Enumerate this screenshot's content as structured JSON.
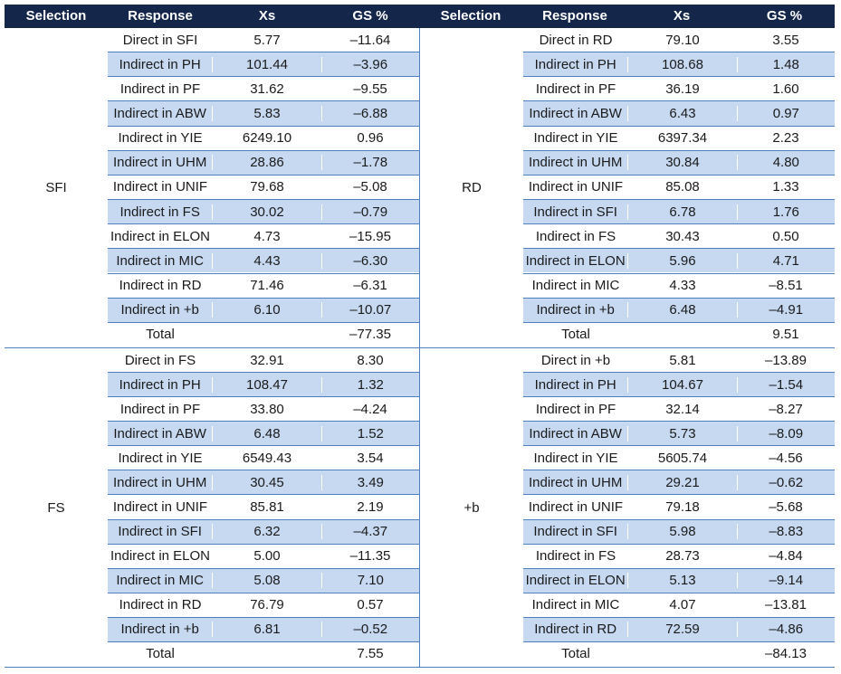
{
  "headers": [
    "Selection",
    "Response",
    "Xs",
    "GS %",
    "Selection",
    "Response",
    "Xs",
    "GS %"
  ],
  "blocks": [
    {
      "selection": "SFI",
      "rows": [
        {
          "response": "Direct in SFI",
          "xs": "5.77",
          "gs": "–11.64"
        },
        {
          "response": "Indirect in PH",
          "xs": "101.44",
          "gs": "–3.96"
        },
        {
          "response": "Indirect in PF",
          "xs": "31.62",
          "gs": "–9.55"
        },
        {
          "response": "Indirect in ABW",
          "xs": "5.83",
          "gs": "–6.88"
        },
        {
          "response": "Indirect in YIE",
          "xs": "6249.10",
          "gs": "0.96"
        },
        {
          "response": "Indirect in UHM",
          "xs": "28.86",
          "gs": "–1.78"
        },
        {
          "response": "Indirect in UNIF",
          "xs": "79.68",
          "gs": "–5.08"
        },
        {
          "response": "Indirect in FS",
          "xs": "30.02",
          "gs": "–0.79"
        },
        {
          "response": "Indirect in ELON",
          "xs": "4.73",
          "gs": "–15.95"
        },
        {
          "response": "Indirect in MIC",
          "xs": "4.43",
          "gs": "–6.30"
        },
        {
          "response": "Indirect in RD",
          "xs": "71.46",
          "gs": "–6.31"
        },
        {
          "response": "Indirect in +b",
          "xs": "6.10",
          "gs": "–10.07"
        },
        {
          "response": "Total",
          "xs": "",
          "gs": "–77.35"
        }
      ]
    },
    {
      "selection": "RD",
      "rows": [
        {
          "response": "Direct in RD",
          "xs": "79.10",
          "gs": "3.55"
        },
        {
          "response": "Indirect in PH",
          "xs": "108.68",
          "gs": "1.48"
        },
        {
          "response": "Indirect in PF",
          "xs": "36.19",
          "gs": "1.60"
        },
        {
          "response": "Indirect in ABW",
          "xs": "6.43",
          "gs": "0.97"
        },
        {
          "response": "Indirect in YIE",
          "xs": "6397.34",
          "gs": "2.23"
        },
        {
          "response": "Indirect in UHM",
          "xs": "30.84",
          "gs": "4.80"
        },
        {
          "response": "Indirect in UNIF",
          "xs": "85.08",
          "gs": "1.33"
        },
        {
          "response": "Indirect in SFI",
          "xs": "6.78",
          "gs": "1.76"
        },
        {
          "response": "Indirect in FS",
          "xs": "30.43",
          "gs": "0.50"
        },
        {
          "response": "Indirect in ELON",
          "xs": "5.96",
          "gs": "4.71"
        },
        {
          "response": "Indirect in MIC",
          "xs": "4.33",
          "gs": "–8.51"
        },
        {
          "response": "Indirect in +b",
          "xs": "6.48",
          "gs": "–4.91"
        },
        {
          "response": "Total",
          "xs": "",
          "gs": "9.51"
        }
      ]
    },
    {
      "selection": "FS",
      "rows": [
        {
          "response": "Direct in FS",
          "xs": "32.91",
          "gs": "8.30"
        },
        {
          "response": "Indirect in PH",
          "xs": "108.47",
          "gs": "1.32"
        },
        {
          "response": "Indirect in PF",
          "xs": "33.80",
          "gs": "–4.24"
        },
        {
          "response": "Indirect in ABW",
          "xs": "6.48",
          "gs": "1.52"
        },
        {
          "response": "Indirect in YIE",
          "xs": "6549.43",
          "gs": "3.54"
        },
        {
          "response": "Indirect in UHM",
          "xs": "30.45",
          "gs": "3.49"
        },
        {
          "response": "Indirect in UNIF",
          "xs": "85.81",
          "gs": "2.19"
        },
        {
          "response": "Indirect in SFI",
          "xs": "6.32",
          "gs": "–4.37"
        },
        {
          "response": "Indirect in ELON",
          "xs": "5.00",
          "gs": "–11.35"
        },
        {
          "response": "Indirect in MIC",
          "xs": "5.08",
          "gs": "7.10"
        },
        {
          "response": "Indirect in RD",
          "xs": "76.79",
          "gs": "0.57"
        },
        {
          "response": "Indirect in +b",
          "xs": "6.81",
          "gs": "–0.52"
        },
        {
          "response": "Total",
          "xs": "",
          "gs": "7.55"
        }
      ]
    },
    {
      "selection": "+b",
      "rows": [
        {
          "response": "Direct in +b",
          "xs": "5.81",
          "gs": "–13.89"
        },
        {
          "response": "Indirect in PH",
          "xs": "104.67",
          "gs": "–1.54"
        },
        {
          "response": "Indirect in PF",
          "xs": "32.14",
          "gs": "–8.27"
        },
        {
          "response": "Indirect in ABW",
          "xs": "5.73",
          "gs": "–8.09"
        },
        {
          "response": "Indirect in YIE",
          "xs": "5605.74",
          "gs": "–4.56"
        },
        {
          "response": "Indirect in UHM",
          "xs": "29.21",
          "gs": "–0.62"
        },
        {
          "response": "Indirect in UNIF",
          "xs": "79.18",
          "gs": "–5.68"
        },
        {
          "response": "Indirect in SFI",
          "xs": "5.98",
          "gs": "–8.83"
        },
        {
          "response": "Indirect in FS",
          "xs": "28.73",
          "gs": "–4.84"
        },
        {
          "response": "Indirect in ELON",
          "xs": "5.13",
          "gs": "–9.14"
        },
        {
          "response": "Indirect in MIC",
          "xs": "4.07",
          "gs": "–13.81"
        },
        {
          "response": "Indirect in RD",
          "xs": "72.59",
          "gs": "–4.86"
        },
        {
          "response": "Total",
          "xs": "",
          "gs": "–84.13"
        }
      ]
    }
  ]
}
